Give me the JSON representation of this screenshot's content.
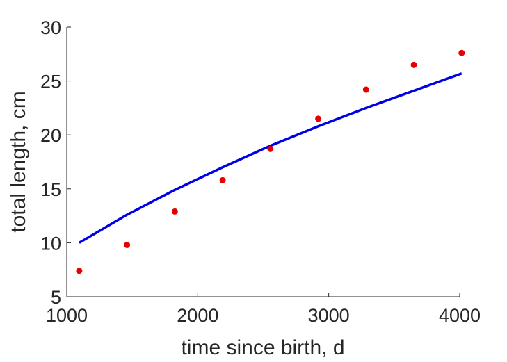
{
  "chart_data": {
    "type": "scatter",
    "title": "",
    "xlabel": "time since birth, d",
    "ylabel": "total length, cm",
    "xlim": [
      1000,
      4000
    ],
    "ylim": [
      5,
      30
    ],
    "xticks": [
      1000,
      2000,
      3000,
      4000
    ],
    "yticks": [
      5,
      10,
      15,
      20,
      25,
      30
    ],
    "grid": false,
    "series": [
      {
        "kind": "points",
        "color": "#e60000",
        "x": [
          1095,
          1460,
          1825,
          2190,
          2555,
          2920,
          3285,
          3650,
          4015
        ],
        "y": [
          7.4,
          9.8,
          12.9,
          15.8,
          18.7,
          21.5,
          24.2,
          26.5,
          27.6
        ]
      },
      {
        "kind": "line",
        "color": "#0000e6",
        "x": [
          1095,
          1460,
          1825,
          2190,
          2555,
          2920,
          3285,
          3650,
          4015
        ],
        "y": [
          10.0,
          12.6,
          14.9,
          17.0,
          19.0,
          20.8,
          22.5,
          24.1,
          25.7
        ]
      }
    ]
  }
}
